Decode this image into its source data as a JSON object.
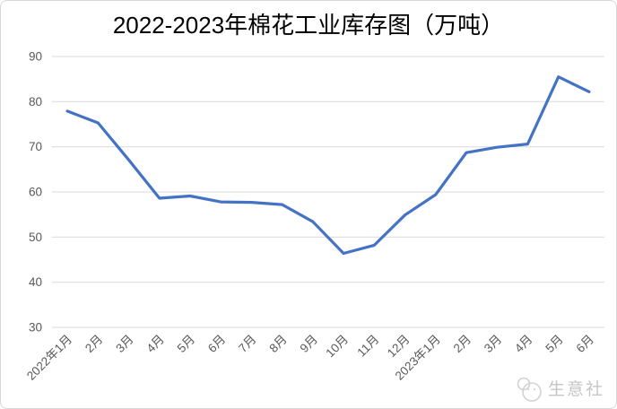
{
  "chart": {
    "title": "2022-2023年棉花工业库存图（万吨）"
  },
  "chart_data": {
    "type": "line",
    "title": "2022-2023年棉花工业库存图（万吨）",
    "categories": [
      "2022年1月",
      "2月",
      "3月",
      "4月",
      "5月",
      "6月",
      "7月",
      "8月",
      "9月",
      "10月",
      "11月",
      "12月",
      "2023年1月",
      "2月",
      "3月",
      "4月",
      "5月",
      "6月"
    ],
    "values": [
      77.9,
      75.3,
      67.1,
      58.6,
      59.1,
      57.8,
      57.7,
      57.2,
      53.4,
      46.4,
      48.2,
      54.9,
      59.4,
      68.7,
      69.9,
      70.6,
      85.5,
      82.2
    ],
    "xlabel": "",
    "ylabel": "",
    "ylim": [
      30,
      90
    ],
    "ytick_step": 10,
    "yticks": [
      30,
      40,
      50,
      60,
      70,
      80,
      90
    ],
    "grid": true,
    "legend": false,
    "line_color": "#4472C4",
    "gridline_color": "#D9D9D9",
    "tick_label_color": "#595959",
    "title_color": "#000000"
  },
  "watermark": {
    "text": "生意社",
    "color": "#c6c6c6"
  }
}
